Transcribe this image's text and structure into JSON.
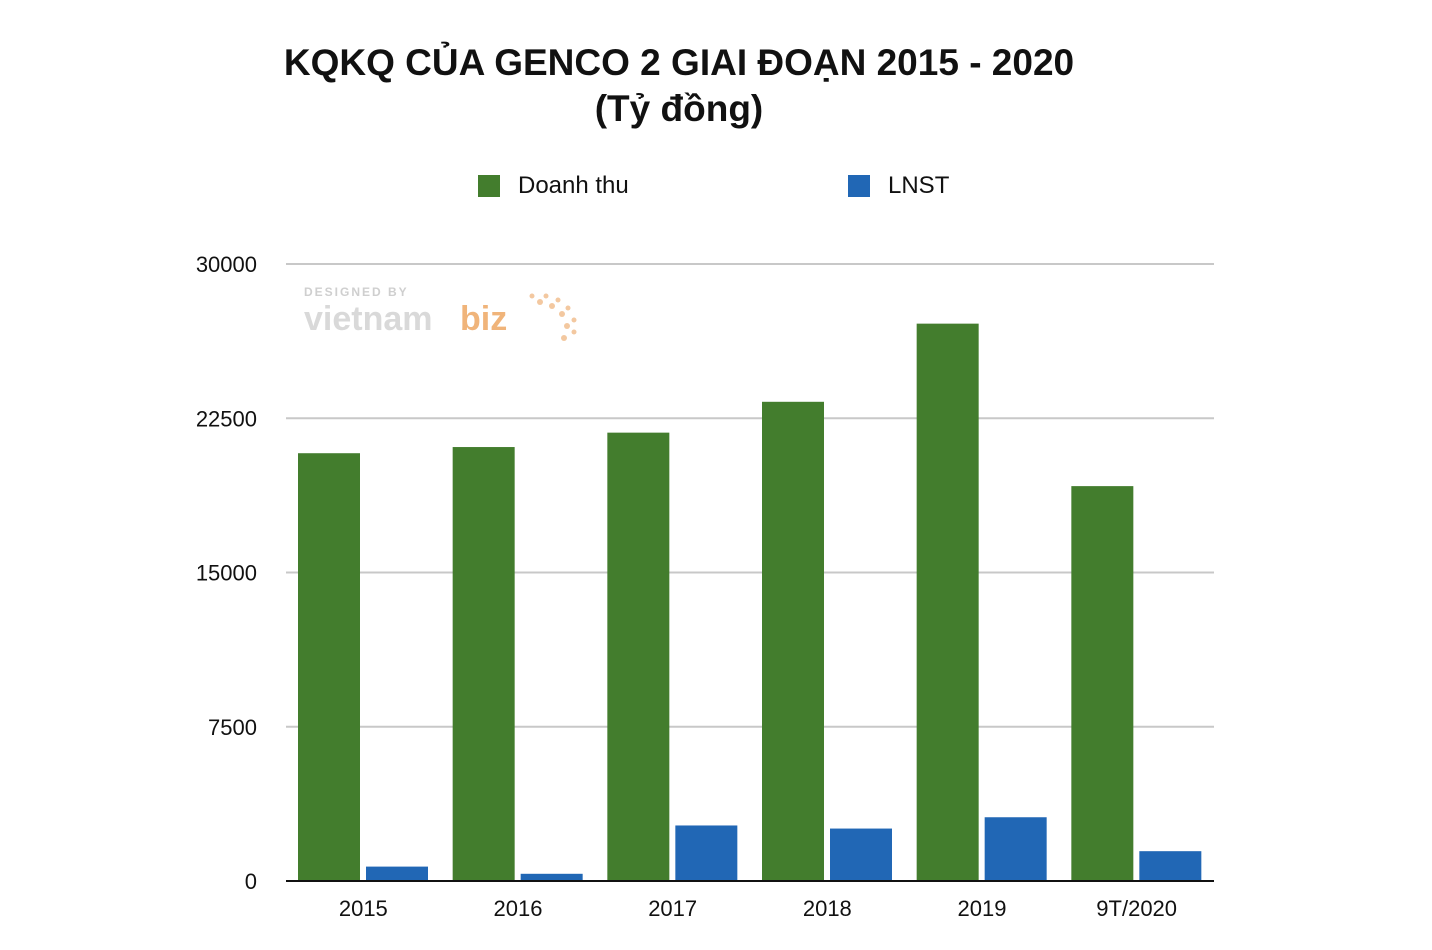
{
  "page": {
    "title": "KQKQ CỦA GENCO 2 GIAI ĐOẠN 2015 - 2020",
    "subtitle": "(Tỷ đồng)",
    "watermark": {
      "top": "DESIGNED BY",
      "brand_main": "vietnam",
      "brand_accent": "biz"
    }
  },
  "chart_data": {
    "type": "bar",
    "title": "KQKQ CỦA GENCO 2 GIAI ĐOẠN 2015 - 2020",
    "subtitle": "(Tỷ đồng)",
    "categories": [
      "2015",
      "2016",
      "2017",
      "2018",
      "2019",
      "9T/2020"
    ],
    "series": [
      {
        "name": "Doanh thu",
        "color": "#437D2D",
        "values": [
          20800,
          21100,
          21800,
          23300,
          27100,
          19200
        ]
      },
      {
        "name": "LNST",
        "color": "#2167B5",
        "values": [
          700,
          350,
          2700,
          2550,
          3100,
          1450
        ]
      }
    ],
    "ylim": [
      0,
      30000
    ],
    "yticks": [
      "0",
      "7500",
      "15000",
      "22500",
      "30000"
    ],
    "ytick_values": [
      0,
      7500,
      15000,
      22500,
      30000
    ],
    "grid": true,
    "legend_position": "top"
  }
}
